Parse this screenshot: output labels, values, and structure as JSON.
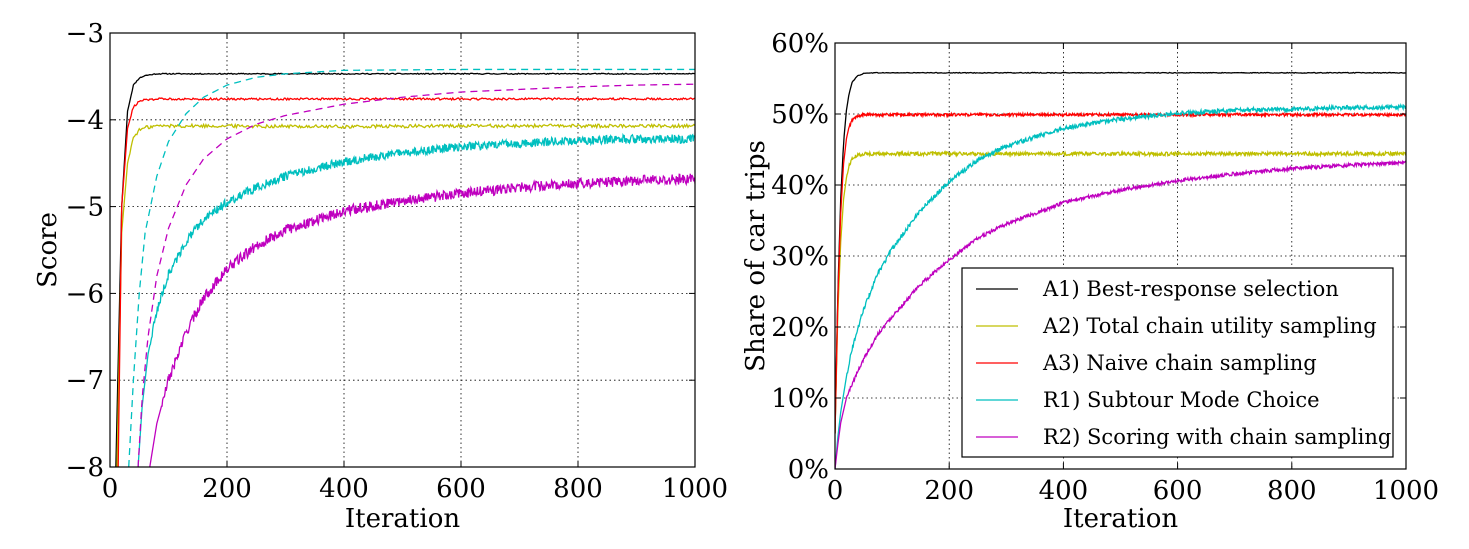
{
  "chart_data": [
    {
      "type": "line",
      "title": "",
      "xlabel": "Iteration",
      "ylabel": "Score",
      "xlim": [
        0,
        1000
      ],
      "ylim": [
        -8,
        -3
      ],
      "grid": true,
      "xticks": [
        0,
        200,
        400,
        600,
        800,
        1000
      ],
      "xtick_labels": [
        "0",
        "200",
        "400",
        "600",
        "800",
        "1000"
      ],
      "yticks": [
        -8,
        -7,
        -6,
        -5,
        -4,
        -3
      ],
      "ytick_labels": [
        "−8",
        "−7",
        "−6",
        "−5",
        "−4",
        "−3"
      ],
      "series": [
        {
          "name": "A1) Best-response selection",
          "color": "#000000",
          "style": "solid",
          "x": [
            10,
            20,
            30,
            40,
            50,
            60,
            80,
            100,
            200,
            400,
            600,
            800,
            1000
          ],
          "y": [
            -8.0,
            -5.0,
            -3.9,
            -3.6,
            -3.52,
            -3.49,
            -3.47,
            -3.47,
            -3.47,
            -3.47,
            -3.47,
            -3.47,
            -3.47
          ]
        },
        {
          "name": "A2) Total chain utility sampling",
          "color": "#bfbf00",
          "style": "solid",
          "x": [
            12,
            20,
            30,
            40,
            50,
            60,
            80,
            100,
            200,
            400,
            600,
            800,
            1000
          ],
          "y": [
            -8.0,
            -5.3,
            -4.5,
            -4.2,
            -4.12,
            -4.09,
            -4.07,
            -4.07,
            -4.07,
            -4.08,
            -4.07,
            -4.07,
            -4.07
          ]
        },
        {
          "name": "A3) Naive chain sampling",
          "color": "#ff0000",
          "style": "solid",
          "x": [
            14,
            20,
            30,
            40,
            50,
            60,
            80,
            100,
            200,
            400,
            600,
            800,
            1000
          ],
          "y": [
            -8.0,
            -5.0,
            -4.1,
            -3.85,
            -3.79,
            -3.77,
            -3.76,
            -3.76,
            -3.76,
            -3.76,
            -3.76,
            -3.76,
            -3.76
          ]
        },
        {
          "name": "R1) Subtour Mode Choice",
          "color": "#00bfbf",
          "style": "solid",
          "x": [
            48,
            55,
            65,
            80,
            100,
            130,
            160,
            200,
            250,
            300,
            400,
            500,
            600,
            700,
            800,
            900,
            1000
          ],
          "y": [
            -8.0,
            -7.3,
            -6.7,
            -6.2,
            -5.78,
            -5.4,
            -5.15,
            -4.95,
            -4.78,
            -4.65,
            -4.48,
            -4.38,
            -4.31,
            -4.27,
            -4.24,
            -4.22,
            -4.22
          ]
        },
        {
          "name": "R2) Scoring with chain sampling",
          "color": "#bf00bf",
          "style": "solid",
          "x": [
            68,
            80,
            100,
            130,
            160,
            200,
            250,
            300,
            400,
            500,
            600,
            700,
            800,
            900,
            1000
          ],
          "y": [
            -8.0,
            -7.5,
            -7.0,
            -6.45,
            -6.05,
            -5.72,
            -5.45,
            -5.27,
            -5.05,
            -4.93,
            -4.85,
            -4.78,
            -4.73,
            -4.7,
            -4.68
          ]
        },
        {
          "name": "R1 (dashed)",
          "color": "#00bfbf",
          "style": "dashed",
          "x": [
            32,
            40,
            50,
            60,
            80,
            100,
            130,
            160,
            200,
            250,
            300,
            400,
            600,
            800,
            1000
          ],
          "y": [
            -8.0,
            -7.0,
            -6.0,
            -5.3,
            -4.65,
            -4.25,
            -3.93,
            -3.74,
            -3.6,
            -3.51,
            -3.47,
            -3.43,
            -3.42,
            -3.42,
            -3.42
          ]
        },
        {
          "name": "R2 (dashed)",
          "color": "#bf00bf",
          "style": "dashed",
          "x": [
            48,
            55,
            65,
            80,
            100,
            130,
            160,
            200,
            250,
            300,
            400,
            500,
            600,
            700,
            800,
            900,
            1000
          ],
          "y": [
            -8.0,
            -7.2,
            -6.5,
            -5.8,
            -5.25,
            -4.75,
            -4.45,
            -4.22,
            -4.05,
            -3.95,
            -3.82,
            -3.74,
            -3.68,
            -3.65,
            -3.62,
            -3.6,
            -3.59
          ]
        }
      ]
    },
    {
      "type": "line",
      "title": "",
      "xlabel": "Iteration",
      "ylabel": "Share of car trips",
      "xlim": [
        0,
        1000
      ],
      "ylim": [
        0,
        60
      ],
      "grid": true,
      "legend": "lower-right",
      "xticks": [
        0,
        200,
        400,
        600,
        800,
        1000
      ],
      "xtick_labels": [
        "0",
        "200",
        "400",
        "600",
        "800",
        "1000"
      ],
      "yticks": [
        0,
        10,
        20,
        30,
        40,
        50,
        60
      ],
      "ytick_labels": [
        "0%",
        "10%",
        "20%",
        "30%",
        "40%",
        "50%",
        "60%"
      ],
      "series": [
        {
          "name": "A1) Best-response selection",
          "color": "#000000",
          "x": [
            0,
            5,
            10,
            15,
            20,
            25,
            30,
            40,
            50,
            60,
            80,
            100,
            200,
            400,
            600,
            800,
            1000
          ],
          "y": [
            5,
            25,
            38,
            46,
            50.5,
            53,
            54.5,
            55.4,
            55.7,
            55.8,
            55.8,
            55.8,
            55.8,
            55.8,
            55.8,
            55.8,
            55.8
          ]
        },
        {
          "name": "A2) Total chain utility sampling",
          "color": "#bfbf00",
          "x": [
            0,
            5,
            10,
            15,
            20,
            25,
            30,
            40,
            50,
            60,
            80,
            100,
            200,
            400,
            600,
            800,
            1000
          ],
          "y": [
            5,
            22,
            32,
            38,
            41,
            42.8,
            43.7,
            44.2,
            44.4,
            44.4,
            44.4,
            44.4,
            44.4,
            44.4,
            44.4,
            44.4,
            44.4
          ]
        },
        {
          "name": "A3) Naive chain sampling",
          "color": "#ff0000",
          "x": [
            0,
            5,
            10,
            15,
            20,
            25,
            30,
            40,
            50,
            60,
            80,
            100,
            200,
            400,
            600,
            800,
            1000
          ],
          "y": [
            5,
            24,
            36,
            43,
            46.5,
            48.2,
            49.2,
            49.7,
            49.9,
            49.9,
            49.9,
            49.9,
            49.9,
            49.9,
            49.9,
            49.9,
            49.9
          ]
        },
        {
          "name": "R1) Subtour Mode Choice",
          "color": "#00bfbf",
          "x": [
            0,
            5,
            10,
            20,
            30,
            50,
            75,
            100,
            150,
            200,
            250,
            300,
            400,
            500,
            600,
            700,
            800,
            900,
            1000
          ],
          "y": [
            0,
            4.5,
            8,
            13,
            17,
            22.5,
            27.5,
            31,
            36.5,
            40.5,
            43.5,
            45.5,
            48,
            49.3,
            50.1,
            50.5,
            50.7,
            50.9,
            51
          ]
        },
        {
          "name": "R2) Scoring with chain sampling",
          "color": "#bf00bf",
          "x": [
            0,
            5,
            10,
            20,
            30,
            50,
            75,
            100,
            150,
            200,
            250,
            300,
            400,
            500,
            600,
            700,
            800,
            900,
            1000
          ],
          "y": [
            0,
            3.5,
            6.5,
            10,
            12,
            15.5,
            19,
            21.5,
            26,
            29.5,
            32.5,
            34.5,
            37.5,
            39.3,
            40.6,
            41.6,
            42.3,
            42.8,
            43.1
          ]
        }
      ]
    }
  ]
}
